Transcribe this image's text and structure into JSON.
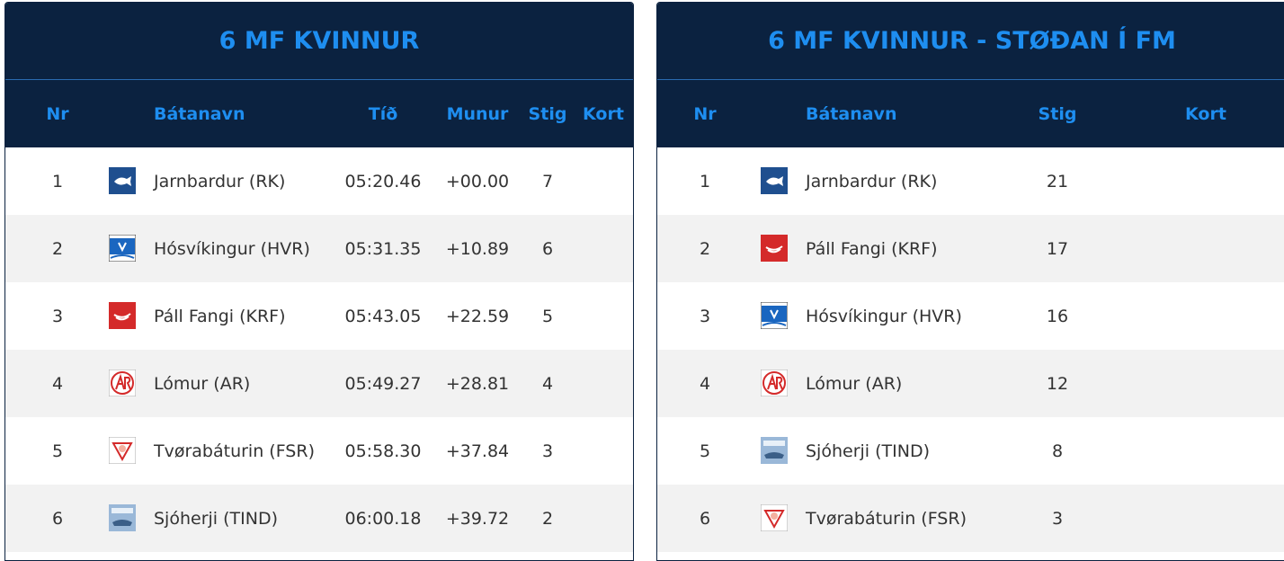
{
  "tables": [
    {
      "title": "6 MF KVINNUR",
      "headers": [
        "Nr",
        "Bátanavn",
        "Tíð",
        "Munur",
        "Stig",
        "Kort"
      ],
      "rows": [
        [
          1,
          "Jarnbardur (RK)",
          "05:20.46",
          "+00.00",
          7
        ],
        [
          2,
          "Hósvíkingur (HVR)",
          "05:31.35",
          "+10.89",
          6
        ],
        [
          3,
          "Páll Fangi (KRF)",
          "05:43.05",
          "+22.59",
          5
        ],
        [
          4,
          "Lómur (AR)",
          "05:49.27",
          "+28.81",
          4
        ],
        [
          5,
          "Tvørabáturin (FSR)",
          "05:58.30",
          "+37.84",
          3
        ],
        [
          6,
          "Sjóherji (TIND)",
          "06:00.18",
          "+39.72",
          2
        ]
      ]
    },
    {
      "title": "6 MF KVINNUR - STØÐAN Í FM",
      "headers": [
        "Nr",
        "Bátanavn",
        "Stig",
        "Kort"
      ],
      "rows": [
        [
          1,
          "Jarnbardur (RK)",
          21
        ],
        [
          2,
          "Páll Fangi (KRF)",
          17
        ],
        [
          3,
          "Hósvíkingur (HVR)",
          16
        ],
        [
          4,
          "Lómur (AR)",
          12
        ],
        [
          5,
          "Sjóherji (TIND)",
          8
        ],
        [
          6,
          "Tvørabáturin (FSR)",
          3
        ]
      ]
    }
  ]
}
